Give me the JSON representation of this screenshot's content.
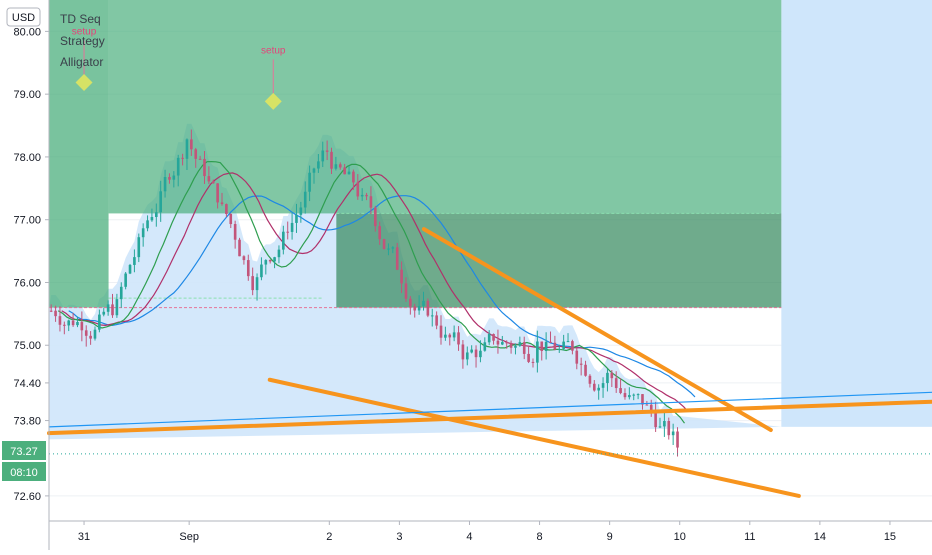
{
  "header": {
    "currency_badge": "USD",
    "indicators": [
      "TD Seq",
      "Strategy",
      "Alligator"
    ]
  },
  "price_tags": {
    "last_price": "73.27",
    "countdown": "08:10"
  },
  "colors": {
    "bull": "#26a69a",
    "bear": "#c2557a",
    "orange": "#f7941d",
    "blue_line": "#2196f3",
    "fill_light": "#cfe6fb",
    "fill_green": "#4caf7d",
    "tag_green": "#4caf7d"
  },
  "chart_data": {
    "type": "candlestick",
    "title": "",
    "y_axis": {
      "ticks": [
        80.0,
        79.0,
        78.0,
        77.0,
        76.0,
        75.0,
        74.4,
        73.8,
        72.6
      ],
      "tick_labels": [
        "80.00",
        "79.00",
        "78.00",
        "77.00",
        "76.00",
        "75.00",
        "74.40",
        "73.80",
        "72.60"
      ],
      "range": [
        72.2,
        80.5
      ]
    },
    "x_axis": {
      "tick_labels": [
        "31",
        "Sep",
        "2",
        "3",
        "4",
        "8",
        "9",
        "10",
        "11",
        "14",
        "15"
      ],
      "tick_index": [
        -0.5,
        1,
        3,
        4,
        5,
        6,
        7,
        8,
        9,
        10,
        11
      ],
      "range": [
        -1.0,
        11.6
      ]
    },
    "candles_per_day": 16,
    "day_closes": [
      75.6,
      78.3,
      76.0,
      78.1,
      76.3,
      74.8,
      75.0,
      74.5,
      73.4
    ],
    "day_start_index": -1,
    "annotations": [
      {
        "text": "setup",
        "day": -0.5,
        "price": 79.95
      },
      {
        "text": "setup",
        "day": 2.2,
        "price": 79.65
      }
    ],
    "trendlines": [
      {
        "from": [
          -1.0,
          73.6
        ],
        "to": [
          11.6,
          74.1
        ],
        "color": "orange"
      },
      {
        "from": [
          4.35,
          76.85
        ],
        "to": [
          9.3,
          73.65
        ],
        "color": "orange"
      },
      {
        "from": [
          2.15,
          74.45
        ],
        "to": [
          9.7,
          72.6
        ],
        "color": "orange"
      },
      {
        "from": [
          -1.0,
          73.7
        ],
        "to": [
          11.6,
          74.25
        ],
        "color": "blue"
      }
    ],
    "price_line": 73.27
  }
}
